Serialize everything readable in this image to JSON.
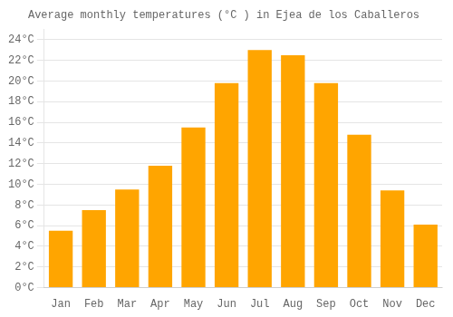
{
  "chart_data": {
    "type": "bar",
    "title": "Average monthly temperatures (°C ) in Ejea de los Caballeros",
    "categories": [
      "Jan",
      "Feb",
      "Mar",
      "Apr",
      "May",
      "Jun",
      "Jul",
      "Aug",
      "Sep",
      "Oct",
      "Nov",
      "Dec"
    ],
    "values": [
      5.5,
      7.5,
      9.5,
      11.8,
      15.5,
      19.8,
      23.0,
      22.5,
      19.8,
      14.8,
      9.4,
      6.1
    ],
    "color": "#FFA500",
    "ylim": [
      0,
      25
    ],
    "yticks": [
      {
        "value": 0,
        "label": "0°C"
      },
      {
        "value": 2,
        "label": "2°C"
      },
      {
        "value": 4,
        "label": "4°C"
      },
      {
        "value": 6,
        "label": "6°C"
      },
      {
        "value": 8,
        "label": "8°C"
      },
      {
        "value": 10,
        "label": "10°C"
      },
      {
        "value": 12,
        "label": "12°C"
      },
      {
        "value": 14,
        "label": "14°C"
      },
      {
        "value": 16,
        "label": "16°C"
      },
      {
        "value": 18,
        "label": "18°C"
      },
      {
        "value": 20,
        "label": "20°C"
      },
      {
        "value": 22,
        "label": "22°C"
      },
      {
        "value": 24,
        "label": "24°C"
      }
    ],
    "grid": true
  }
}
